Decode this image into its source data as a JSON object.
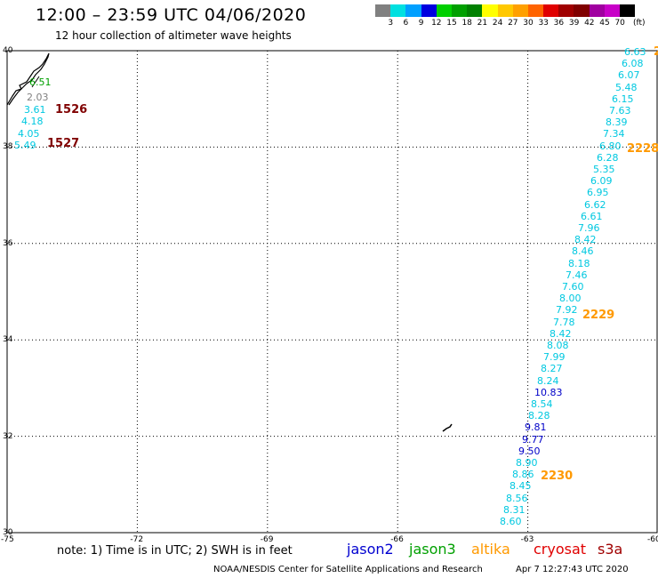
{
  "header": {
    "title": "12:00 – 23:59 UTC 04/06/2020",
    "subtitle": "12 hour collection of altimeter wave heights"
  },
  "legend": {
    "colors": [
      "#808080",
      "#00e0e0",
      "#00a0ff",
      "#0000e0",
      "#00d000",
      "#00a000",
      "#008000",
      "#ffff00",
      "#ffc800",
      "#ffa000",
      "#ff6400",
      "#e00000",
      "#a00000",
      "#800000",
      "#a000a0",
      "#c800c8",
      "#000000"
    ],
    "labels": [
      "3",
      "6",
      "9",
      "12",
      "15",
      "18",
      "21",
      "24",
      "27",
      "30",
      "33",
      "36",
      "39",
      "42",
      "45",
      "70"
    ],
    "unit": "(ft)"
  },
  "axes": {
    "lat_labels": [
      "40",
      "38",
      "36",
      "34",
      "32",
      "30"
    ],
    "lon_labels": [
      "-75",
      "-72",
      "-69",
      "-66",
      "-63",
      "-60"
    ],
    "grid": true,
    "lat_range": [
      30,
      40
    ],
    "lon_range": [
      -75,
      -60
    ]
  },
  "wave_colors": {
    "cyan": "#00c8e0",
    "blue": "#0000c8",
    "green": "#00a000",
    "gray": "#808080",
    "orange": "#ff9900",
    "darkred": "#800000"
  },
  "coast_track": [
    {
      "text": "6.51",
      "color": "green"
    },
    {
      "text": "2.03",
      "color": "gray"
    },
    {
      "text": "3.61",
      "color": "cyan"
    },
    {
      "text": "4.18",
      "color": "cyan"
    },
    {
      "text": "4.05",
      "color": "cyan"
    },
    {
      "text": "5.49",
      "color": "cyan"
    }
  ],
  "coast_passes": [
    {
      "text": "1526",
      "color": "darkred"
    },
    {
      "text": "1527",
      "color": "darkred"
    }
  ],
  "main_track": [
    {
      "text": "6.63",
      "color": "cyan"
    },
    {
      "text": "6.08",
      "color": "cyan"
    },
    {
      "text": "6.07",
      "color": "cyan"
    },
    {
      "text": "5.48",
      "color": "cyan"
    },
    {
      "text": "6.15",
      "color": "cyan"
    },
    {
      "text": "7.63",
      "color": "cyan"
    },
    {
      "text": "8.39",
      "color": "cyan"
    },
    {
      "text": "7.34",
      "color": "cyan"
    },
    {
      "text": "6.80",
      "color": "cyan"
    },
    {
      "text": "6.28",
      "color": "cyan"
    },
    {
      "text": "5.35",
      "color": "cyan"
    },
    {
      "text": "6.09",
      "color": "cyan"
    },
    {
      "text": "6.95",
      "color": "cyan"
    },
    {
      "text": "6.62",
      "color": "cyan"
    },
    {
      "text": "6.61",
      "color": "cyan"
    },
    {
      "text": "7.96",
      "color": "cyan"
    },
    {
      "text": "8.42",
      "color": "cyan"
    },
    {
      "text": "8.46",
      "color": "cyan"
    },
    {
      "text": "8.18",
      "color": "cyan"
    },
    {
      "text": "7.46",
      "color": "cyan"
    },
    {
      "text": "7.60",
      "color": "cyan"
    },
    {
      "text": "8.00",
      "color": "cyan"
    },
    {
      "text": "7.92",
      "color": "cyan"
    },
    {
      "text": "7.78",
      "color": "cyan"
    },
    {
      "text": "8.42",
      "color": "cyan"
    },
    {
      "text": "8.08",
      "color": "cyan"
    },
    {
      "text": "7.99",
      "color": "cyan"
    },
    {
      "text": "8.27",
      "color": "cyan"
    },
    {
      "text": "8.24",
      "color": "cyan"
    },
    {
      "text": "10.83",
      "color": "blue"
    },
    {
      "text": "8.54",
      "color": "cyan"
    },
    {
      "text": "8.28",
      "color": "cyan"
    },
    {
      "text": "9.81",
      "color": "blue"
    },
    {
      "text": "9.77",
      "color": "blue"
    },
    {
      "text": "9.50",
      "color": "blue"
    },
    {
      "text": "8.90",
      "color": "cyan"
    },
    {
      "text": "8.86",
      "color": "cyan"
    },
    {
      "text": "8.45",
      "color": "cyan"
    },
    {
      "text": "8.56",
      "color": "cyan"
    },
    {
      "text": "8.31",
      "color": "cyan"
    },
    {
      "text": "8.60",
      "color": "cyan"
    }
  ],
  "main_passes": [
    {
      "text": "2",
      "color": "orange"
    },
    {
      "text": "2228",
      "color": "orange"
    },
    {
      "text": "2229",
      "color": "orange"
    },
    {
      "text": "2230",
      "color": "orange"
    }
  ],
  "footer": {
    "note": "note:  1) Time is in UTC;  2) SWH is in feet",
    "satellites": [
      {
        "name": "jason2",
        "color": "#0000d0"
      },
      {
        "name": "jason3",
        "color": "#00a000"
      },
      {
        "name": "altika",
        "color": "#ff9900"
      },
      {
        "name": "cryosat",
        "color": "#e00000"
      },
      {
        "name": "s3a",
        "color": "#a00000"
      }
    ],
    "credit": "NOAA/NESDIS Center for Satellite Applications and Research",
    "timestamp": "Apr  7 12:27:43 UTC 2020"
  }
}
